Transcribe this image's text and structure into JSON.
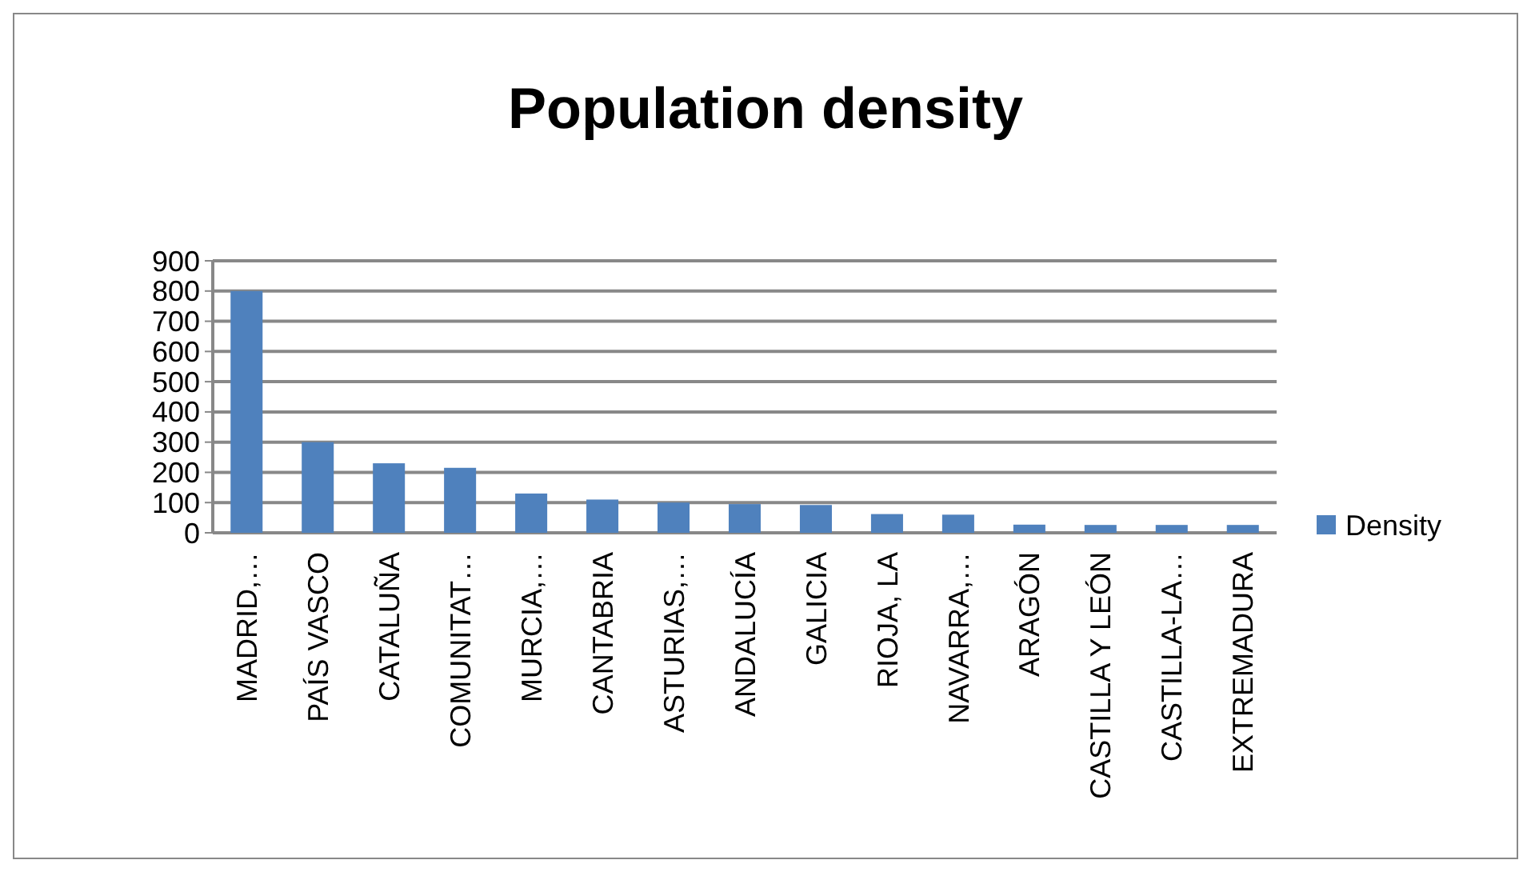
{
  "chart_data": {
    "type": "bar",
    "title": "Population density",
    "categories": [
      "MADRID,…",
      "PAÍS VASCO",
      "CATALUÑA",
      "COMUNITAT…",
      "MURCIA,…",
      "CANTABRIA",
      "ASTURIAS,…",
      "ANDALUCÍA",
      "GALICIA",
      "RIOJA, LA",
      "NAVARRA,…",
      "ARAGÓN",
      "CASTILLA Y LEÓN",
      "CASTILLA-LA…",
      "EXTREMADURA"
    ],
    "series": [
      {
        "name": "Density",
        "color": "#4f81bd",
        "values": [
          800,
          300,
          230,
          215,
          130,
          110,
          100,
          95,
          92,
          62,
          60,
          27,
          26,
          26,
          26
        ]
      }
    ],
    "ylim": [
      0,
      900
    ],
    "yticks": [
      0,
      100,
      200,
      300,
      400,
      500,
      600,
      700,
      800,
      900
    ],
    "grid": "y",
    "legend": "right"
  }
}
